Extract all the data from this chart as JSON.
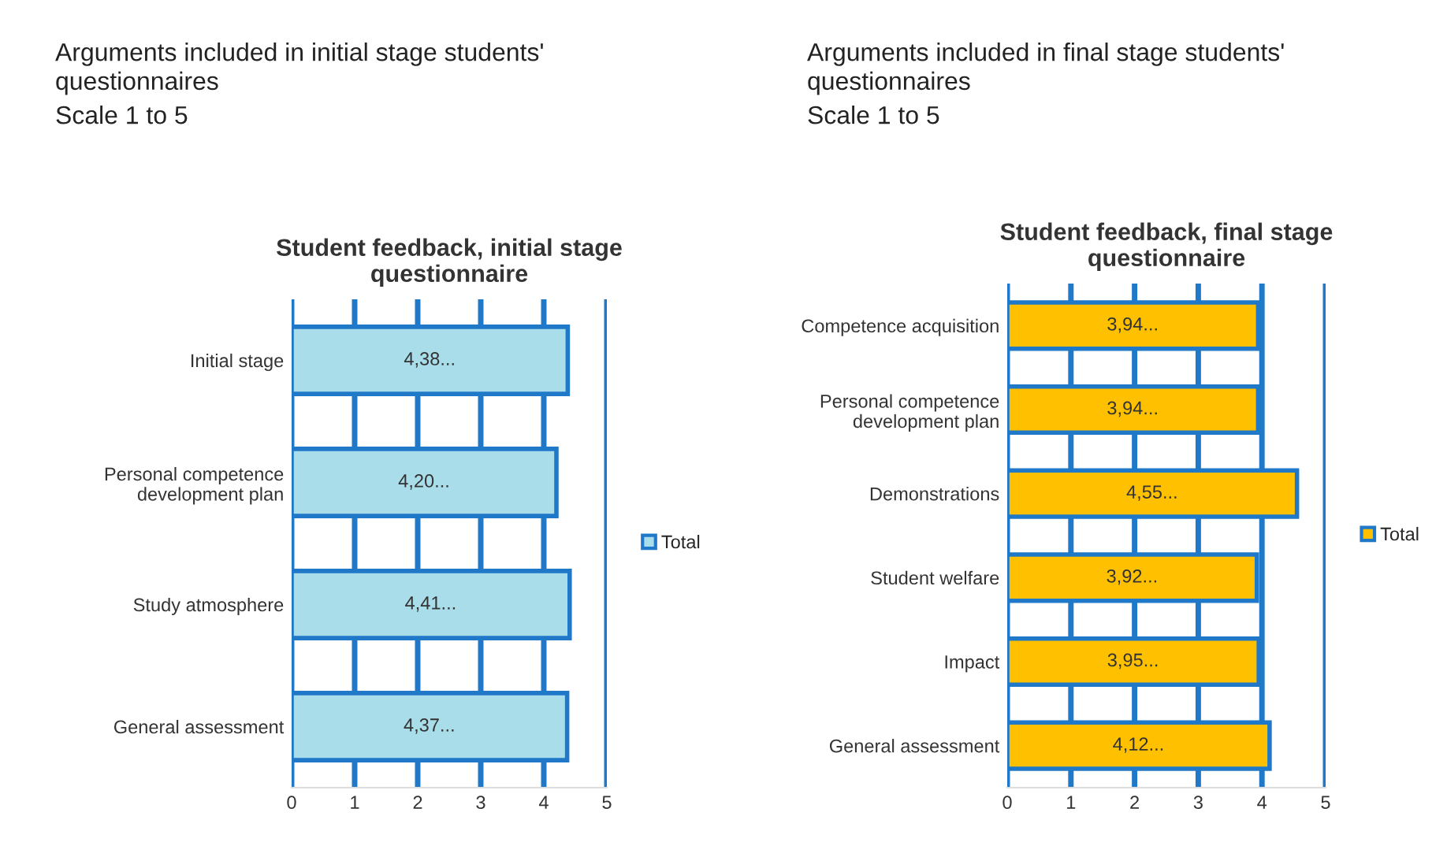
{
  "chart_data": [
    {
      "type": "bar",
      "orientation": "horizontal",
      "title": "Student feedback, initial stage\nquestionnaire",
      "annotations": [
        "Arguments included in initial stage students'\nquestionnaires",
        "Scale 1 to 5"
      ],
      "categories": [
        "Initial stage",
        "Personal competence\ndevelopment plan",
        "Study atmosphere",
        "General assessment"
      ],
      "series": [
        {
          "name": "Total",
          "color": "#a9dde9",
          "values": [
            4.38,
            4.2,
            4.41,
            4.37
          ],
          "value_labels": [
            "4,38...",
            "4,20...",
            "4,41...",
            "4,37..."
          ]
        }
      ],
      "xlim": [
        0,
        5
      ],
      "xticks": [
        0,
        1,
        2,
        3,
        4,
        5
      ],
      "grid": "x",
      "legend": "right"
    },
    {
      "type": "bar",
      "orientation": "horizontal",
      "title": "Student feedback, final stage\nquestionnaire",
      "annotations": [
        "Arguments included in final stage students'\nquestionnaires",
        "Scale 1 to 5"
      ],
      "categories": [
        "Competence acquisition",
        "Personal competence\ndevelopment plan",
        "Demonstrations",
        "Student welfare",
        "Impact",
        "General assessment"
      ],
      "series": [
        {
          "name": "Total",
          "color": "#ffc000",
          "values": [
            3.94,
            3.94,
            4.55,
            3.92,
            3.95,
            4.12
          ],
          "value_labels": [
            "3,94...",
            "3,94...",
            "4,55...",
            "3,92...",
            "3,95...",
            "4,12..."
          ]
        }
      ],
      "xlim": [
        0,
        5
      ],
      "xticks": [
        0,
        1,
        2,
        3,
        4,
        5
      ],
      "grid": "x",
      "legend": "right"
    }
  ]
}
